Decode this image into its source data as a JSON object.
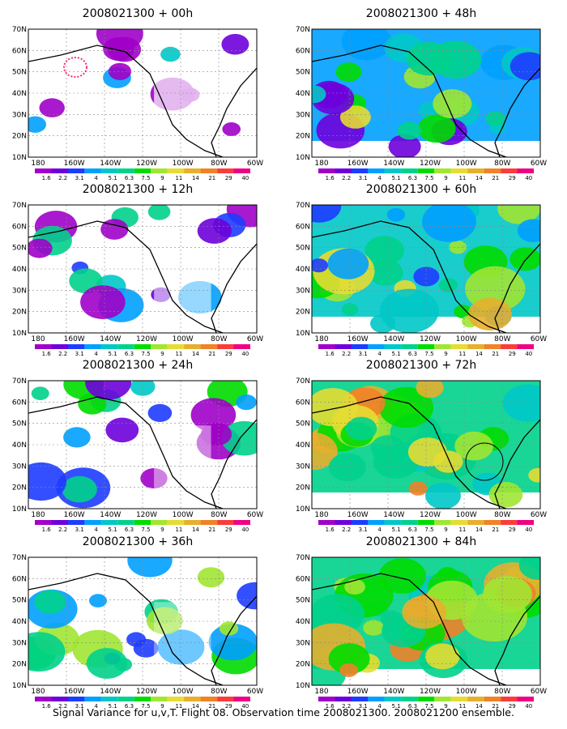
{
  "panels": [
    {
      "title": "2008021300 + 00h",
      "level": 0.05,
      "highlight_circle": false,
      "dotted_marker": true
    },
    {
      "title": "2008021300 + 48h",
      "level": 0.45,
      "highlight_circle": false,
      "dotted_marker": false
    },
    {
      "title": "2008021300 + 12h",
      "level": 0.2,
      "highlight_circle": false,
      "dotted_marker": false
    },
    {
      "title": "2008021300 + 60h",
      "level": 0.55,
      "highlight_circle": false,
      "dotted_marker": false
    },
    {
      "title": "2008021300 + 24h",
      "level": 0.3,
      "highlight_circle": false,
      "dotted_marker": false
    },
    {
      "title": "2008021300 + 72h",
      "level": 0.7,
      "highlight_circle": true,
      "dotted_marker": false
    },
    {
      "title": "2008021300 + 36h",
      "level": 0.38,
      "highlight_circle": false,
      "dotted_marker": false
    },
    {
      "title": "2008021300 + 84h",
      "level": 0.75,
      "highlight_circle": false,
      "dotted_marker": false
    }
  ],
  "lat_labels": [
    "70N",
    "60N",
    "50N",
    "40N",
    "30N",
    "20N",
    "10N"
  ],
  "lon_labels": [
    "180",
    "160W",
    "140W",
    "120W",
    "100W",
    "80W",
    "60W"
  ],
  "colorbar": {
    "labels": [
      "1.6",
      "2.2",
      "3.1",
      "4",
      "5.1",
      "6.3",
      "7.5",
      "9",
      "11",
      "14",
      "21",
      "29",
      "40"
    ],
    "colors": [
      "#a000c8",
      "#6e00dc",
      "#1e3cff",
      "#00a0ff",
      "#00c8c8",
      "#00d28c",
      "#00dc00",
      "#a0e632",
      "#e6dc32",
      "#e6af2d",
      "#f08228",
      "#fa3c3c",
      "#f00082"
    ]
  },
  "caption": "Signal Variance for u,v,T. Flight 08. Observation time 2008021300. 2008021200 ensemble."
}
